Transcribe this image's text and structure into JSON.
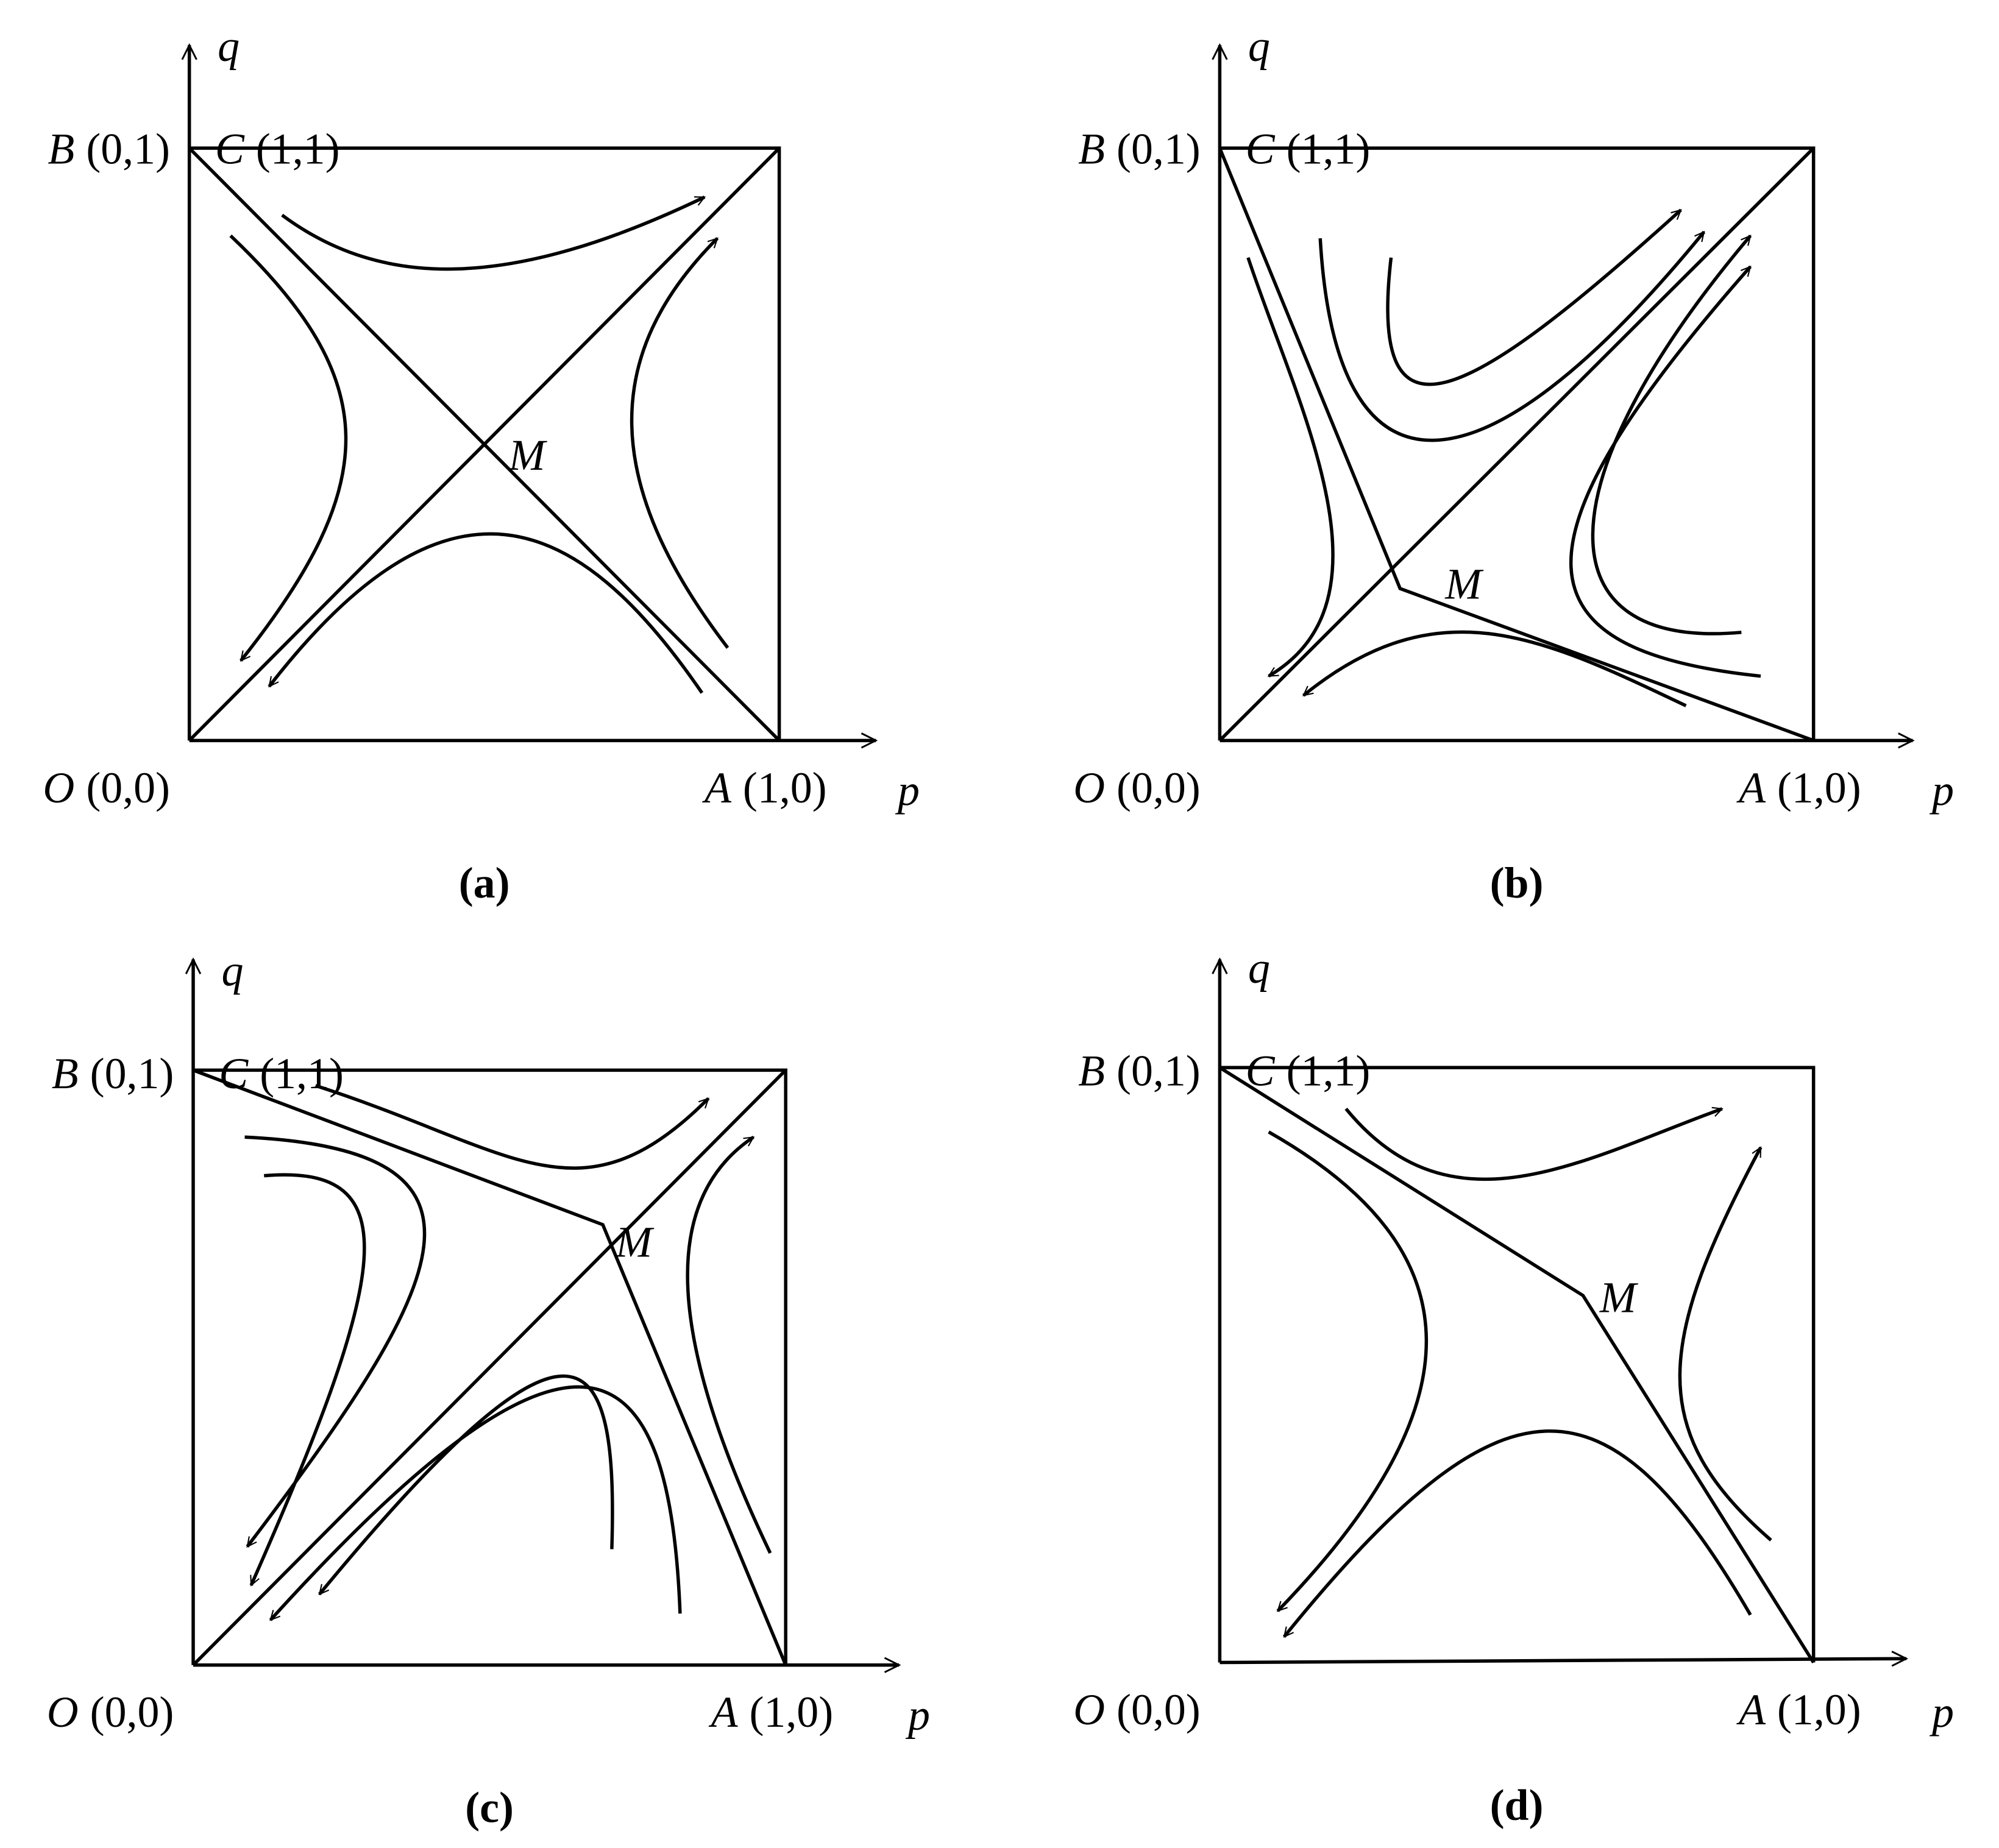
{
  "panels": [
    {
      "caption": "(a)",
      "q": "q",
      "p": "p",
      "M": "M",
      "points": [
        {
          "name": "B",
          "coords": "(0,1)"
        },
        {
          "name": "C",
          "coords": "(1,1)"
        },
        {
          "name": "O",
          "coords": "(0,0)"
        },
        {
          "name": "A",
          "coords": "(1,0)"
        }
      ]
    },
    {
      "caption": "(b)",
      "q": "q",
      "p": "p",
      "M": "M",
      "points": [
        {
          "name": "B",
          "coords": "(0,1)"
        },
        {
          "name": "C",
          "coords": "(1,1)"
        },
        {
          "name": "O",
          "coords": "(0,0)"
        },
        {
          "name": "A",
          "coords": "(1,0)"
        }
      ]
    },
    {
      "caption": "(c)",
      "q": "q",
      "p": "p",
      "M": "M",
      "points": [
        {
          "name": "B",
          "coords": "(0,1)"
        },
        {
          "name": "C",
          "coords": "(1,1)"
        },
        {
          "name": "O",
          "coords": "(0,0)"
        },
        {
          "name": "A",
          "coords": "(1,0)"
        }
      ]
    },
    {
      "caption": "(d)",
      "q": "q",
      "p": "p",
      "M": "M",
      "points": [
        {
          "name": "B",
          "coords": "(0,1)"
        },
        {
          "name": "C",
          "coords": "(1,1)"
        },
        {
          "name": "O",
          "coords": "(0,0)"
        },
        {
          "name": "A",
          "coords": "(1,0)"
        }
      ]
    }
  ]
}
